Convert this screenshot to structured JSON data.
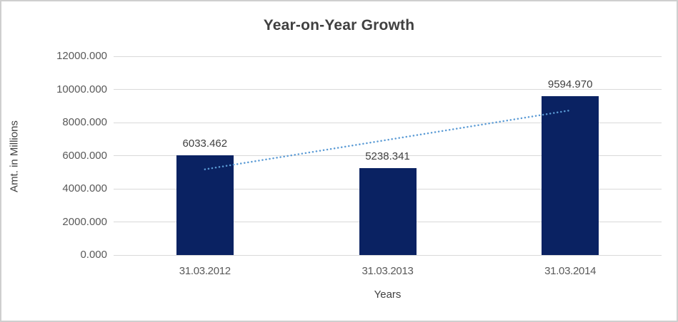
{
  "window": {
    "background_color": "#ffffff",
    "border_color": "#cfcfcf"
  },
  "chart_data": {
    "type": "bar",
    "title": "Year-on-Year Growth",
    "xlabel": "Years",
    "ylabel": "Amt. in Millions",
    "categories": [
      "31.03.2012",
      "31.03.2013",
      "31.03.2014"
    ],
    "values": [
      6033.462,
      5238.341,
      9594.97
    ],
    "data_labels": [
      "6033.462",
      "5238.341",
      "9594.970"
    ],
    "ylim": [
      0,
      12000
    ],
    "ytick_step": 2000,
    "ytick_decimals": 3,
    "ytick_labels": [
      "0.000",
      "2000.000",
      "4000.000",
      "6000.000",
      "8000.000",
      "10000.000",
      "12000.000"
    ],
    "grid": "horizontal",
    "legend_position": "none",
    "bar_color": "#0A2262",
    "gridline_color": "#d9d9d9",
    "tick_label_color": "#595959",
    "title_color": "#404040",
    "trendline": {
      "type": "linear",
      "style": "dotted",
      "color": "#5B9BD5",
      "start_value": 5175,
      "end_value": 8736
    }
  }
}
